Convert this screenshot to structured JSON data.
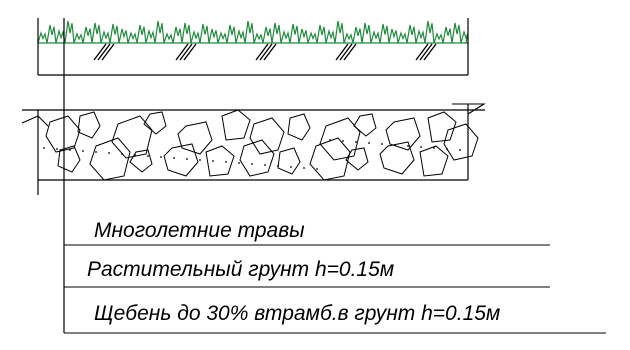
{
  "colors": {
    "grass": "#1f8a3c",
    "line": "#000000",
    "background": "#ffffff"
  },
  "icons": [
    "grass-icon",
    "soil-hatch-icon",
    "crushed-stone-icon"
  ],
  "callouts": [
    {
      "text": "Многолетние травы"
    },
    {
      "text": "Растительный грунт h=0.15м"
    },
    {
      "text": "Щебень до 30% втрамб.в грунт h=0.15м"
    }
  ]
}
